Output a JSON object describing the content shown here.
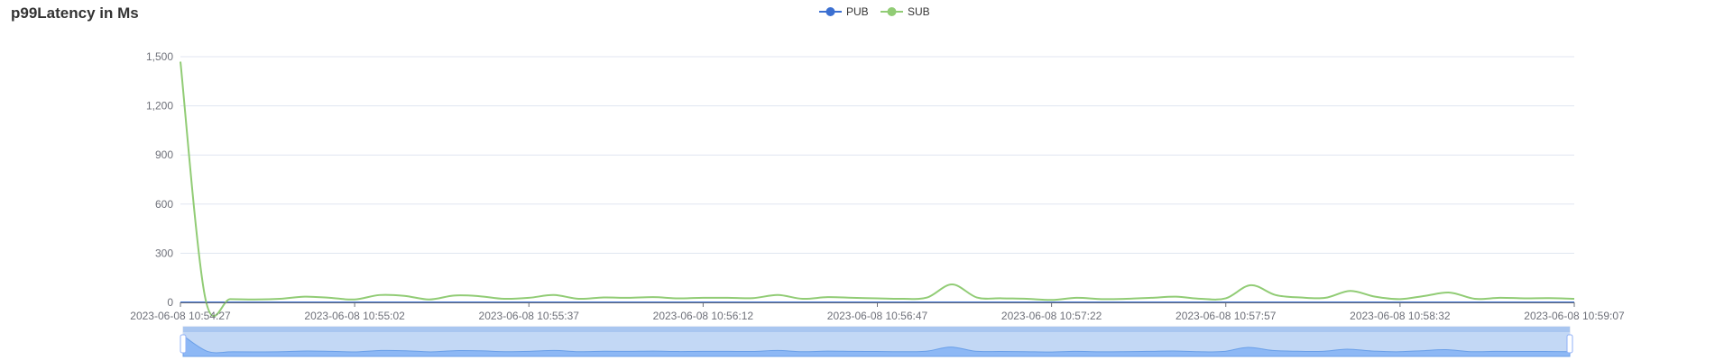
{
  "chart_data": {
    "type": "line",
    "title": "p99Latency in Ms",
    "xlabel": "",
    "ylabel": "",
    "ylim": [
      0,
      1500
    ],
    "y_ticks": [
      0,
      300,
      600,
      900,
      1200,
      1500
    ],
    "y_tick_labels": [
      "0",
      "300",
      "600",
      "900",
      "1,200",
      "1,500"
    ],
    "x_tick_labels": [
      "2023-06-08 10:54:27",
      "2023-06-08 10:55:02",
      "2023-06-08 10:55:37",
      "2023-06-08 10:56:12",
      "2023-06-08 10:56:47",
      "2023-06-08 10:57:22",
      "2023-06-08 10:57:57",
      "2023-06-08 10:58:32",
      "2023-06-08 10:59:07"
    ],
    "x_start": "2023-06-08 10:54:27",
    "x_end": "2023-06-08 10:59:07",
    "grid": true,
    "legend_position": "top-center",
    "zoom_slider": true,
    "series": [
      {
        "name": "PUB",
        "color": "#3b6fd1",
        "values": [
          0,
          0,
          0,
          0,
          0,
          0,
          0,
          0,
          0,
          0,
          0,
          0,
          0,
          0,
          0,
          0,
          0,
          0,
          0,
          0,
          0,
          0,
          0,
          0,
          0,
          0,
          0,
          0,
          0,
          0,
          0,
          0,
          0,
          0,
          0,
          0,
          0,
          0,
          0,
          0,
          0,
          0,
          0,
          0,
          0,
          0,
          0,
          0,
          0,
          0,
          0,
          0,
          0,
          0,
          0,
          0,
          0
        ]
      },
      {
        "name": "SUB",
        "color": "#91cc75",
        "values": [
          1470,
          25,
          20,
          18,
          22,
          35,
          28,
          18,
          45,
          40,
          18,
          42,
          38,
          22,
          28,
          45,
          22,
          30,
          28,
          32,
          25,
          28,
          28,
          26,
          45,
          22,
          32,
          28,
          25,
          22,
          30,
          110,
          30,
          25,
          22,
          15,
          28,
          20,
          22,
          28,
          35,
          22,
          25,
          105,
          45,
          30,
          28,
          70,
          35,
          20,
          40,
          60,
          22,
          28,
          25,
          26,
          22
        ]
      }
    ]
  }
}
